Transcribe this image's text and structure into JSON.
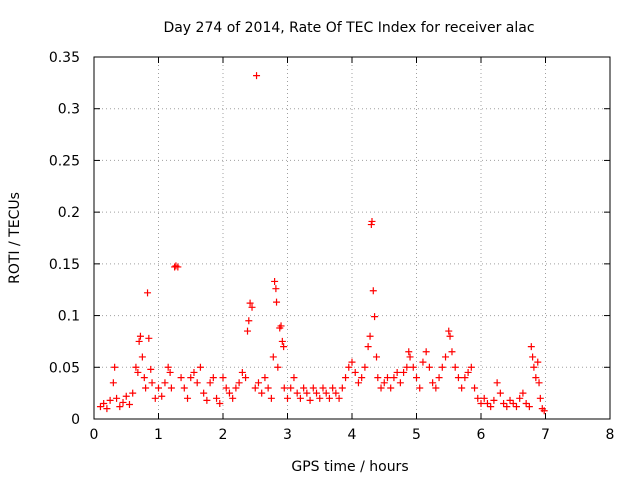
{
  "chart_data": {
    "type": "scatter",
    "title": "Day 274 of 2014, Rate Of TEC Index for receiver alac",
    "xlabel": "GPS time / hours",
    "ylabel": "ROTI / TECUs",
    "xlim": [
      0,
      8
    ],
    "ylim": [
      0,
      0.35
    ],
    "x_ticks": [
      0,
      1,
      2,
      3,
      4,
      5,
      6,
      7,
      8
    ],
    "y_ticks": [
      0,
      0.05,
      0.1,
      0.15,
      0.2,
      0.25,
      0.3,
      0.35
    ],
    "x_tick_labels": [
      "0",
      "1",
      "2",
      "3",
      "4",
      "5",
      "6",
      "7",
      "8"
    ],
    "y_tick_labels": [
      "0",
      "0.05",
      "0.1",
      "0.15",
      "0.2",
      "0.25",
      "0.3",
      "0.35"
    ],
    "grid": true,
    "marker": "+",
    "color": "#ff0000",
    "series": [
      {
        "name": "ROTI",
        "points": [
          [
            0.1,
            0.012
          ],
          [
            0.15,
            0.015
          ],
          [
            0.2,
            0.01
          ],
          [
            0.25,
            0.018
          ],
          [
            0.3,
            0.035
          ],
          [
            0.32,
            0.05
          ],
          [
            0.35,
            0.02
          ],
          [
            0.4,
            0.012
          ],
          [
            0.45,
            0.016
          ],
          [
            0.5,
            0.022
          ],
          [
            0.55,
            0.014
          ],
          [
            0.6,
            0.025
          ],
          [
            0.65,
            0.05
          ],
          [
            0.68,
            0.045
          ],
          [
            0.7,
            0.075
          ],
          [
            0.72,
            0.08
          ],
          [
            0.75,
            0.06
          ],
          [
            0.78,
            0.04
          ],
          [
            0.8,
            0.03
          ],
          [
            0.83,
            0.122
          ],
          [
            0.85,
            0.078
          ],
          [
            0.88,
            0.048
          ],
          [
            0.9,
            0.035
          ],
          [
            0.95,
            0.02
          ],
          [
            1.0,
            0.03
          ],
          [
            1.05,
            0.022
          ],
          [
            1.1,
            0.035
          ],
          [
            1.15,
            0.05
          ],
          [
            1.18,
            0.045
          ],
          [
            1.2,
            0.03
          ],
          [
            1.25,
            0.147
          ],
          [
            1.27,
            0.148
          ],
          [
            1.3,
            0.147
          ],
          [
            1.35,
            0.04
          ],
          [
            1.4,
            0.03
          ],
          [
            1.45,
            0.02
          ],
          [
            1.5,
            0.04
          ],
          [
            1.55,
            0.045
          ],
          [
            1.6,
            0.035
          ],
          [
            1.65,
            0.05
          ],
          [
            1.7,
            0.025
          ],
          [
            1.75,
            0.018
          ],
          [
            1.8,
            0.035
          ],
          [
            1.85,
            0.04
          ],
          [
            1.9,
            0.02
          ],
          [
            1.95,
            0.015
          ],
          [
            2.0,
            0.04
          ],
          [
            2.05,
            0.03
          ],
          [
            2.1,
            0.025
          ],
          [
            2.15,
            0.02
          ],
          [
            2.2,
            0.03
          ],
          [
            2.25,
            0.035
          ],
          [
            2.3,
            0.045
          ],
          [
            2.35,
            0.04
          ],
          [
            2.38,
            0.085
          ],
          [
            2.4,
            0.095
          ],
          [
            2.42,
            0.112
          ],
          [
            2.45,
            0.108
          ],
          [
            2.5,
            0.03
          ],
          [
            2.52,
            0.332
          ],
          [
            2.55,
            0.035
          ],
          [
            2.6,
            0.025
          ],
          [
            2.65,
            0.04
          ],
          [
            2.7,
            0.03
          ],
          [
            2.75,
            0.02
          ],
          [
            2.78,
            0.06
          ],
          [
            2.8,
            0.133
          ],
          [
            2.82,
            0.126
          ],
          [
            2.83,
            0.113
          ],
          [
            2.85,
            0.05
          ],
          [
            2.88,
            0.088
          ],
          [
            2.9,
            0.09
          ],
          [
            2.92,
            0.075
          ],
          [
            2.94,
            0.07
          ],
          [
            2.95,
            0.03
          ],
          [
            3.0,
            0.02
          ],
          [
            3.05,
            0.03
          ],
          [
            3.1,
            0.04
          ],
          [
            3.15,
            0.025
          ],
          [
            3.2,
            0.02
          ],
          [
            3.25,
            0.03
          ],
          [
            3.3,
            0.025
          ],
          [
            3.35,
            0.018
          ],
          [
            3.4,
            0.03
          ],
          [
            3.45,
            0.025
          ],
          [
            3.5,
            0.02
          ],
          [
            3.55,
            0.03
          ],
          [
            3.6,
            0.025
          ],
          [
            3.65,
            0.02
          ],
          [
            3.7,
            0.03
          ],
          [
            3.75,
            0.025
          ],
          [
            3.8,
            0.02
          ],
          [
            3.85,
            0.03
          ],
          [
            3.9,
            0.04
          ],
          [
            3.95,
            0.05
          ],
          [
            4.0,
            0.055
          ],
          [
            4.05,
            0.045
          ],
          [
            4.1,
            0.035
          ],
          [
            4.15,
            0.04
          ],
          [
            4.2,
            0.05
          ],
          [
            4.25,
            0.07
          ],
          [
            4.28,
            0.08
          ],
          [
            4.3,
            0.188
          ],
          [
            4.31,
            0.191
          ],
          [
            4.33,
            0.124
          ],
          [
            4.35,
            0.099
          ],
          [
            4.38,
            0.06
          ],
          [
            4.4,
            0.04
          ],
          [
            4.45,
            0.03
          ],
          [
            4.5,
            0.035
          ],
          [
            4.55,
            0.04
          ],
          [
            4.6,
            0.03
          ],
          [
            4.65,
            0.04
          ],
          [
            4.7,
            0.045
          ],
          [
            4.75,
            0.035
          ],
          [
            4.8,
            0.045
          ],
          [
            4.85,
            0.05
          ],
          [
            4.88,
            0.065
          ],
          [
            4.9,
            0.06
          ],
          [
            4.95,
            0.05
          ],
          [
            5.0,
            0.04
          ],
          [
            5.05,
            0.03
          ],
          [
            5.1,
            0.055
          ],
          [
            5.15,
            0.065
          ],
          [
            5.2,
            0.05
          ],
          [
            5.25,
            0.035
          ],
          [
            5.3,
            0.03
          ],
          [
            5.35,
            0.04
          ],
          [
            5.4,
            0.05
          ],
          [
            5.45,
            0.06
          ],
          [
            5.5,
            0.085
          ],
          [
            5.52,
            0.08
          ],
          [
            5.55,
            0.065
          ],
          [
            5.6,
            0.05
          ],
          [
            5.65,
            0.04
          ],
          [
            5.7,
            0.03
          ],
          [
            5.75,
            0.04
          ],
          [
            5.8,
            0.045
          ],
          [
            5.85,
            0.05
          ],
          [
            5.9,
            0.03
          ],
          [
            5.95,
            0.02
          ],
          [
            6.0,
            0.015
          ],
          [
            6.05,
            0.02
          ],
          [
            6.1,
            0.015
          ],
          [
            6.15,
            0.012
          ],
          [
            6.2,
            0.018
          ],
          [
            6.25,
            0.035
          ],
          [
            6.3,
            0.025
          ],
          [
            6.35,
            0.015
          ],
          [
            6.4,
            0.012
          ],
          [
            6.45,
            0.018
          ],
          [
            6.5,
            0.015
          ],
          [
            6.55,
            0.012
          ],
          [
            6.6,
            0.02
          ],
          [
            6.65,
            0.025
          ],
          [
            6.7,
            0.015
          ],
          [
            6.75,
            0.012
          ],
          [
            6.78,
            0.07
          ],
          [
            6.8,
            0.06
          ],
          [
            6.82,
            0.05
          ],
          [
            6.85,
            0.04
          ],
          [
            6.88,
            0.055
          ],
          [
            6.9,
            0.035
          ],
          [
            6.92,
            0.02
          ],
          [
            6.95,
            0.01
          ],
          [
            6.98,
            0.008
          ]
        ]
      }
    ]
  }
}
